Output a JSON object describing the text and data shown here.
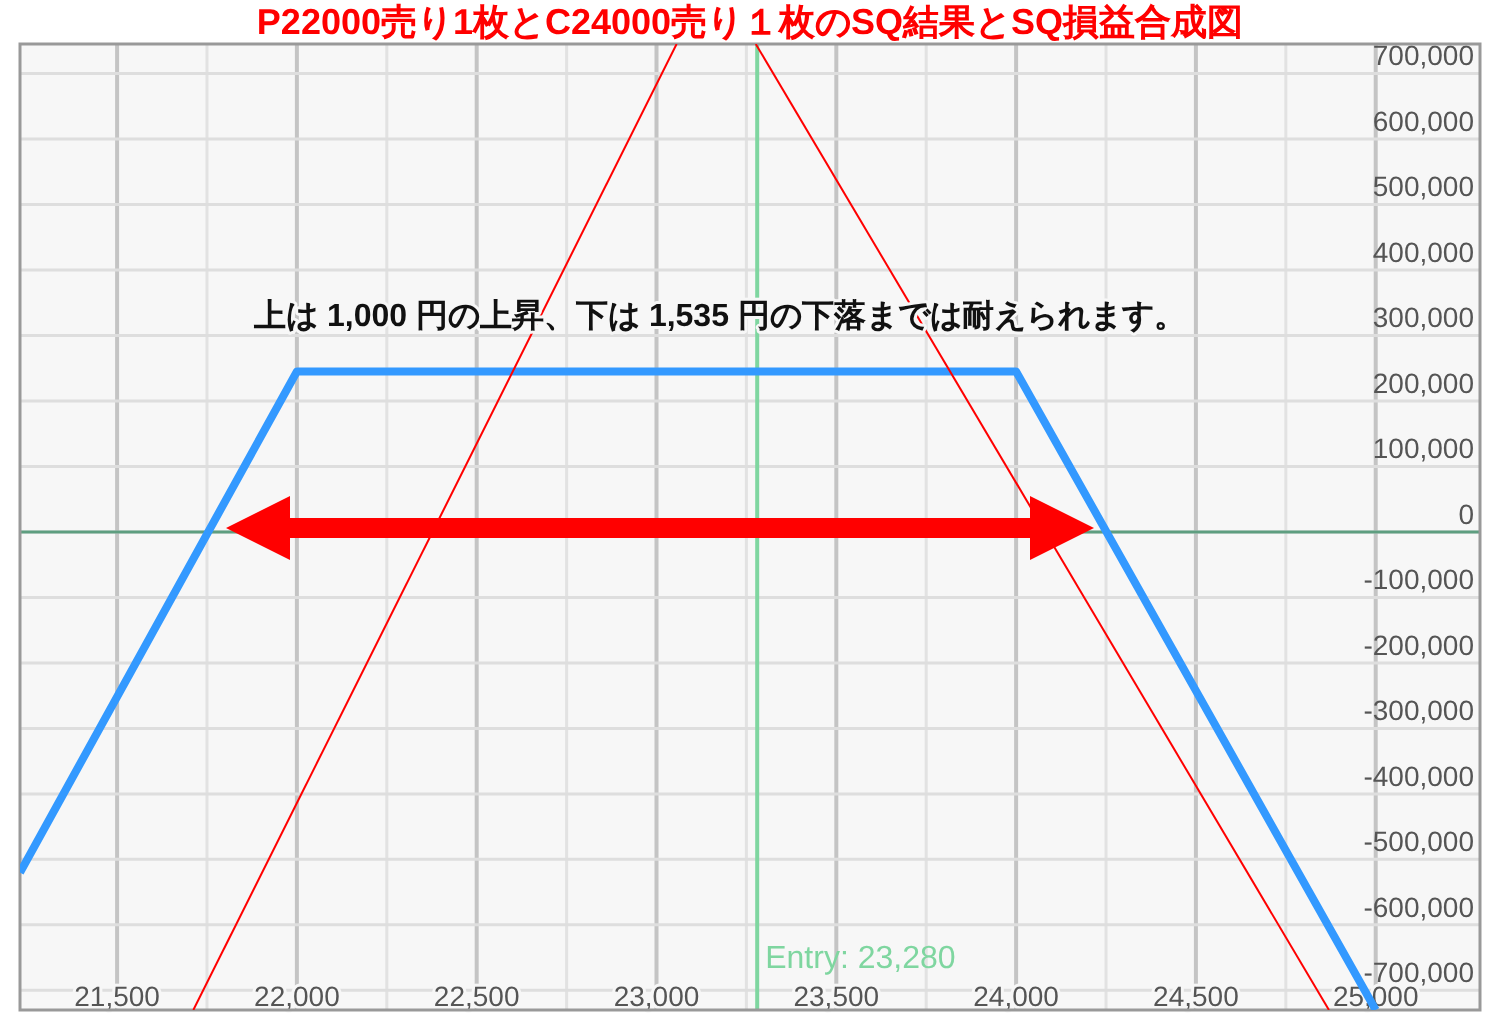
{
  "chart_data": {
    "type": "line",
    "title": "P22000売り1枚とC24000売り１枚のSQ結果とSQ損益合成図",
    "annotations": [
      "上は 1,000 円の上昇、下は 1,535 円の下落までは耐えられます。"
    ],
    "series": [
      {
        "color": "#3399ff",
        "x": [
          21230,
          22000,
          24000,
          25000
        ],
        "values": [
          -520000,
          245000,
          245000,
          -730000
        ]
      },
      {
        "color": "#ff0000",
        "x": [
          21712,
          23056
        ],
        "values": [
          -730000,
          745000
        ]
      },
      {
        "color": "#ff0000",
        "x": [
          23276,
          24870
        ],
        "values": [
          745000,
          -730000
        ]
      }
    ],
    "xlim": [
      21230,
      25290
    ],
    "ylim": [
      -730000,
      745000
    ],
    "xticks": [
      {
        "value": 21500,
        "label": "21,500"
      },
      {
        "value": 21750,
        "label": null
      },
      {
        "value": 22000,
        "label": "22,000"
      },
      {
        "value": 22250,
        "label": null
      },
      {
        "value": 22500,
        "label": "22,500"
      },
      {
        "value": 22750,
        "label": null
      },
      {
        "value": 23000,
        "label": "23,000"
      },
      {
        "value": 23250,
        "label": null
      },
      {
        "value": 23500,
        "label": "23,500"
      },
      {
        "value": 23750,
        "label": null
      },
      {
        "value": 24000,
        "label": "24,000"
      },
      {
        "value": 24250,
        "label": null
      },
      {
        "value": 24500,
        "label": "24,500"
      },
      {
        "value": 24750,
        "label": null
      },
      {
        "value": 25000,
        "label": "25,000"
      }
    ],
    "yticks": [
      {
        "value": -700000,
        "label": "-700,000"
      },
      {
        "value": -600000,
        "label": "-600,000"
      },
      {
        "value": -500000,
        "label": "-500,000"
      },
      {
        "value": -400000,
        "label": "-400,000"
      },
      {
        "value": -300000,
        "label": "-300,000"
      },
      {
        "value": -200000,
        "label": "-200,000"
      },
      {
        "value": -100000,
        "label": "-100,000"
      },
      0,
      {
        "value": 100000,
        "label": "100,000"
      },
      {
        "value": 200000,
        "label": "200,000"
      },
      {
        "value": 300000,
        "label": "300,000"
      },
      {
        "value": 400000,
        "label": "400,000"
      },
      {
        "value": 500000,
        "label": "500,000"
      },
      {
        "value": 600000,
        "label": "600,000"
      },
      {
        "value": 700000,
        "label": "700,000"
      }
    ],
    "grid": true,
    "ref_lines": [
      {
        "axis": "x",
        "value": 23280,
        "label": "Entry: 23,280",
        "color": "#7fd6a0"
      },
      {
        "axis": "y",
        "value": 0,
        "color": "#5e9e80"
      }
    ]
  }
}
